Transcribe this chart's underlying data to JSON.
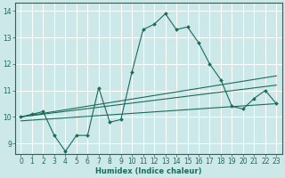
{
  "xlabel": "Humidex (Indice chaleur)",
  "background_color": "#cde8e8",
  "grid_color": "#ffffff",
  "line_color": "#1a6b5a",
  "xlim": [
    -0.5,
    23.5
  ],
  "ylim": [
    8.6,
    14.3
  ],
  "yticks": [
    9,
    10,
    11,
    12,
    13,
    14
  ],
  "xticks": [
    0,
    1,
    2,
    3,
    4,
    5,
    6,
    7,
    8,
    9,
    10,
    11,
    12,
    13,
    14,
    15,
    16,
    17,
    18,
    19,
    20,
    21,
    22,
    23
  ],
  "series1_x": [
    0,
    1,
    2,
    3,
    4,
    5,
    6,
    7,
    8,
    9,
    10,
    11,
    12,
    13,
    14,
    15,
    16,
    17,
    18,
    19,
    20,
    21,
    22,
    23
  ],
  "series1_y": [
    10.0,
    10.1,
    10.2,
    9.3,
    8.7,
    9.3,
    9.3,
    11.1,
    9.8,
    9.9,
    11.7,
    13.3,
    13.5,
    13.9,
    13.3,
    13.4,
    12.8,
    12.0,
    11.4,
    10.4,
    10.3,
    10.7,
    11.0,
    10.5
  ],
  "trend1_x": [
    0,
    23
  ],
  "trend1_y": [
    10.0,
    11.55
  ],
  "trend2_x": [
    0,
    23
  ],
  "trend2_y": [
    10.0,
    11.2
  ],
  "trend3_x": [
    0,
    23
  ],
  "trend3_y": [
    9.85,
    10.5
  ]
}
